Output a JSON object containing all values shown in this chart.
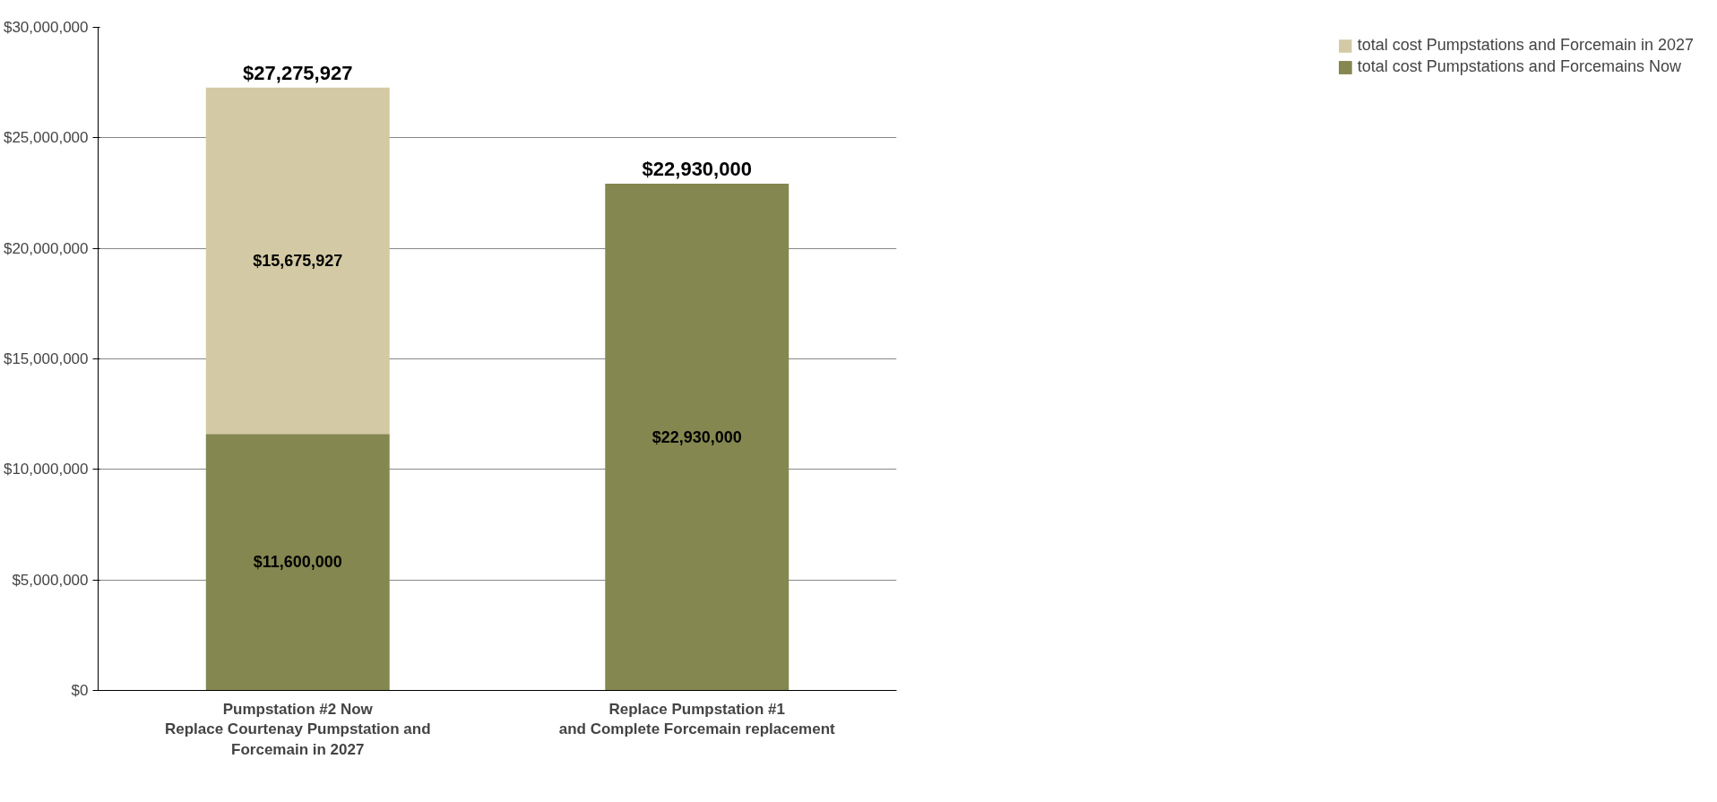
{
  "chart_data": {
    "type": "bar",
    "stacked": true,
    "categories": [
      "Pumpstation #2 Now\nReplace Courtenay Pumpstation and\nForcemain in 2027",
      "Replace Pumpstation #1\nand Complete Forcemain replacement"
    ],
    "series": [
      {
        "name": "total cost Pumpstations and Forcemains Now",
        "color": "#84874f",
        "values": [
          11600000,
          22930000
        ]
      },
      {
        "name": "total cost Pumpstations and Forcemain in 2027",
        "color": "#d3c9a4",
        "values": [
          15675927,
          null
        ]
      }
    ],
    "ylim": [
      0,
      30000000
    ],
    "yticks": [
      {
        "value": 0,
        "label": "$0"
      },
      {
        "value": 5000000,
        "label": "$5,000,000"
      },
      {
        "value": 10000000,
        "label": "$10,000,000"
      },
      {
        "value": 15000000,
        "label": "$15,000,000"
      },
      {
        "value": 20000000,
        "label": "$20,000,000"
      },
      {
        "value": 25000000,
        "label": "$25,000,000"
      },
      {
        "value": 30000000,
        "label": "$30,000,000"
      }
    ],
    "value_labels": [
      [
        "$11,600,000",
        "$22,930,000"
      ],
      [
        "$15,675,927",
        null
      ]
    ],
    "totals": [
      "$27,275,927",
      "$22,930,000"
    ],
    "grid": "y",
    "legend": "right"
  }
}
